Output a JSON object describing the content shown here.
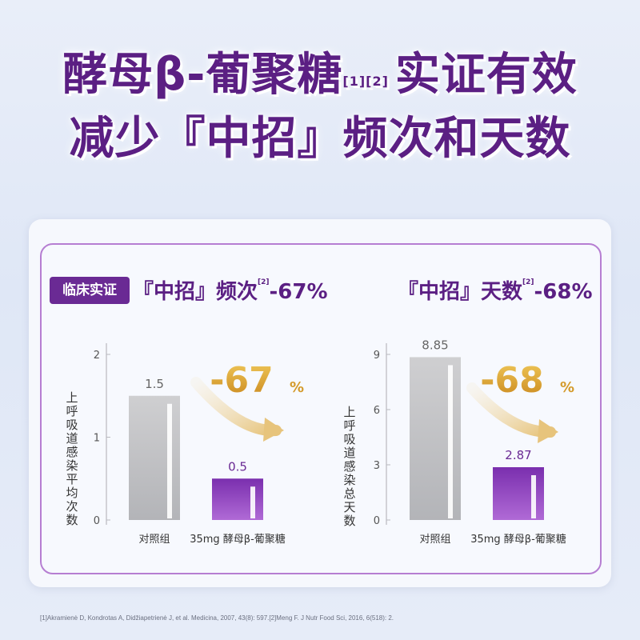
{
  "headline": {
    "line1_a": "酵母β-葡聚糖",
    "line1_sup": "[1][2]",
    "line1_b": "实证有效",
    "line2": "减少『中招』频次和天数"
  },
  "badge": "临床实证",
  "colors": {
    "title": "#5b1f83",
    "control_bar": "#c8c8c8",
    "treatment_bar": "#8a3cb8",
    "arrow_gold": "#e8c070",
    "card_border": "#b67ed2"
  },
  "chart_data": [
    {
      "type": "bar",
      "title": "『中招』频次",
      "title_sup": "[2]",
      "title_change": "-67%",
      "ylabel": "上呼吸道感染平均次数",
      "categories": [
        "对照组",
        "35mg 酵母β-葡聚糖"
      ],
      "values": [
        1.5,
        0.5
      ],
      "value_labels": [
        "1.5",
        "0.5"
      ],
      "ylim": [
        0,
        2
      ],
      "yticks": [
        "0",
        "1",
        "2"
      ],
      "yticks_values": [
        0,
        1,
        2
      ],
      "annotation_value": "-67",
      "annotation_unit": "%"
    },
    {
      "type": "bar",
      "title": "『中招』天数",
      "title_sup": "[2]",
      "title_change": "-68%",
      "ylabel": "上呼吸道感染总天数",
      "categories": [
        "对照组",
        "35mg 酵母β-葡聚糖"
      ],
      "values": [
        8.85,
        2.87
      ],
      "value_labels": [
        "8.85",
        "2.87"
      ],
      "ylim": [
        0,
        9
      ],
      "yticks": [
        "0",
        "3",
        "6",
        "9"
      ],
      "yticks_values": [
        0,
        3,
        6,
        9
      ],
      "annotation_value": "-68",
      "annotation_unit": "%"
    }
  ],
  "footnote": "[1]Akramienė D, Kondrotas A, Didžiapetrienė J, et al. Medicina, 2007, 43(8): 597.[2]Meng F. J Nutr Food Sci, 2016, 6(518): 2."
}
